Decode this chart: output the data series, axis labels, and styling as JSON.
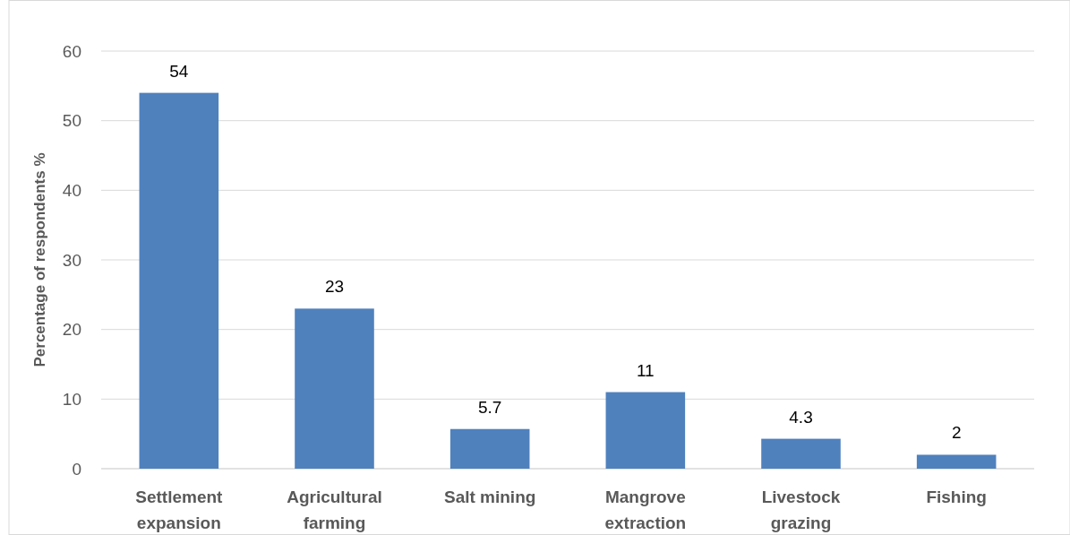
{
  "chart_data": {
    "type": "bar",
    "ylabel": "Percentage of respondents %",
    "categories": [
      "Settlement expansion",
      "Agricultural farming",
      "Salt mining",
      "Mangrove extraction",
      "Livestock grazing",
      "Fishing"
    ],
    "values": [
      54,
      23,
      5.7,
      11,
      4.3,
      2
    ],
    "color": "#4f81bd",
    "ylim": [
      0,
      60
    ],
    "yticks": [
      0,
      10,
      20,
      30,
      40,
      50,
      60
    ],
    "grid": "y",
    "data_labels": true
  }
}
